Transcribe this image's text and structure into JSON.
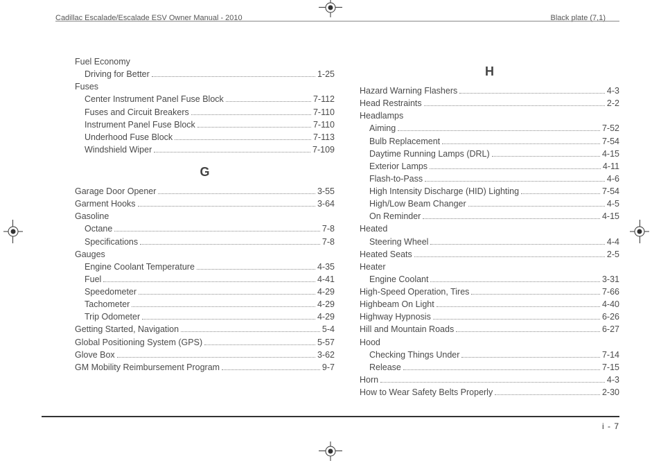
{
  "header": {
    "title": "Cadillac Escalade/Escalade ESV Owner Manual - 2010",
    "plate": "Black plate (7,1)"
  },
  "page_number": "i - 7",
  "columns": {
    "left": [
      {
        "type": "group",
        "label": "Fuel Economy"
      },
      {
        "type": "sub",
        "label": "Driving for Better",
        "page": "1-25"
      },
      {
        "type": "group",
        "label": "Fuses"
      },
      {
        "type": "sub",
        "label": "Center Instrument Panel Fuse Block",
        "page": "7-112"
      },
      {
        "type": "sub",
        "label": "Fuses and Circuit Breakers",
        "page": "7-110"
      },
      {
        "type": "sub",
        "label": "Instrument Panel Fuse Block",
        "page": "7-110"
      },
      {
        "type": "sub",
        "label": "Underhood Fuse Block",
        "page": "7-113"
      },
      {
        "type": "sub",
        "label": "Windshield Wiper",
        "page": "7-109"
      },
      {
        "type": "heading",
        "label": "G"
      },
      {
        "type": "entry",
        "label": "Garage Door Opener",
        "page": "3-55"
      },
      {
        "type": "entry",
        "label": "Garment Hooks",
        "page": "3-64"
      },
      {
        "type": "group",
        "label": "Gasoline"
      },
      {
        "type": "sub",
        "label": "Octane",
        "page": "7-8"
      },
      {
        "type": "sub",
        "label": "Specifications",
        "page": "7-8"
      },
      {
        "type": "group",
        "label": "Gauges"
      },
      {
        "type": "sub",
        "label": "Engine Coolant Temperature",
        "page": "4-35"
      },
      {
        "type": "sub",
        "label": "Fuel",
        "page": "4-41"
      },
      {
        "type": "sub",
        "label": "Speedometer",
        "page": "4-29"
      },
      {
        "type": "sub",
        "label": "Tachometer",
        "page": "4-29"
      },
      {
        "type": "sub",
        "label": "Trip Odometer",
        "page": "4-29"
      },
      {
        "type": "entry",
        "label": "Getting Started, Navigation",
        "page": "5-4"
      },
      {
        "type": "entry",
        "label": "Global Positioning System (GPS)",
        "page": "5-57"
      },
      {
        "type": "entry",
        "label": "Glove Box",
        "page": "3-62"
      },
      {
        "type": "entry",
        "label": "GM Mobility Reimbursement Program",
        "page": "9-7"
      }
    ],
    "right": [
      {
        "type": "heading",
        "label": "H"
      },
      {
        "type": "entry",
        "label": "Hazard Warning Flashers",
        "page": "4-3"
      },
      {
        "type": "entry",
        "label": "Head Restraints",
        "page": "2-2"
      },
      {
        "type": "group",
        "label": "Headlamps"
      },
      {
        "type": "sub",
        "label": "Aiming",
        "page": "7-52"
      },
      {
        "type": "sub",
        "label": "Bulb Replacement",
        "page": "7-54"
      },
      {
        "type": "sub",
        "label": "Daytime Running Lamps (DRL)",
        "page": "4-15"
      },
      {
        "type": "sub",
        "label": "Exterior Lamps",
        "page": "4-11"
      },
      {
        "type": "sub",
        "label": "Flash-to-Pass",
        "page": "4-6"
      },
      {
        "type": "sub",
        "label": "High Intensity Discharge (HID) Lighting",
        "page": "7-54"
      },
      {
        "type": "sub",
        "label": "High/Low Beam Changer",
        "page": "4-5"
      },
      {
        "type": "sub",
        "label": "On Reminder",
        "page": "4-15"
      },
      {
        "type": "group",
        "label": "Heated"
      },
      {
        "type": "sub",
        "label": "Steering Wheel",
        "page": "4-4"
      },
      {
        "type": "entry",
        "label": "Heated Seats",
        "page": "2-5"
      },
      {
        "type": "group",
        "label": "Heater"
      },
      {
        "type": "sub",
        "label": "Engine Coolant",
        "page": "3-31"
      },
      {
        "type": "entry",
        "label": "High-Speed Operation, Tires",
        "page": "7-66"
      },
      {
        "type": "entry",
        "label": "Highbeam On Light",
        "page": "4-40"
      },
      {
        "type": "entry",
        "label": "Highway Hypnosis",
        "page": "6-26"
      },
      {
        "type": "entry",
        "label": "Hill and Mountain Roads",
        "page": "6-27"
      },
      {
        "type": "group",
        "label": "Hood"
      },
      {
        "type": "sub",
        "label": "Checking Things Under",
        "page": "7-14"
      },
      {
        "type": "sub",
        "label": "Release",
        "page": "7-15"
      },
      {
        "type": "entry",
        "label": "Horn",
        "page": "4-3"
      },
      {
        "type": "entry",
        "label": "How to Wear Safety Belts Properly",
        "page": "2-30"
      }
    ]
  }
}
